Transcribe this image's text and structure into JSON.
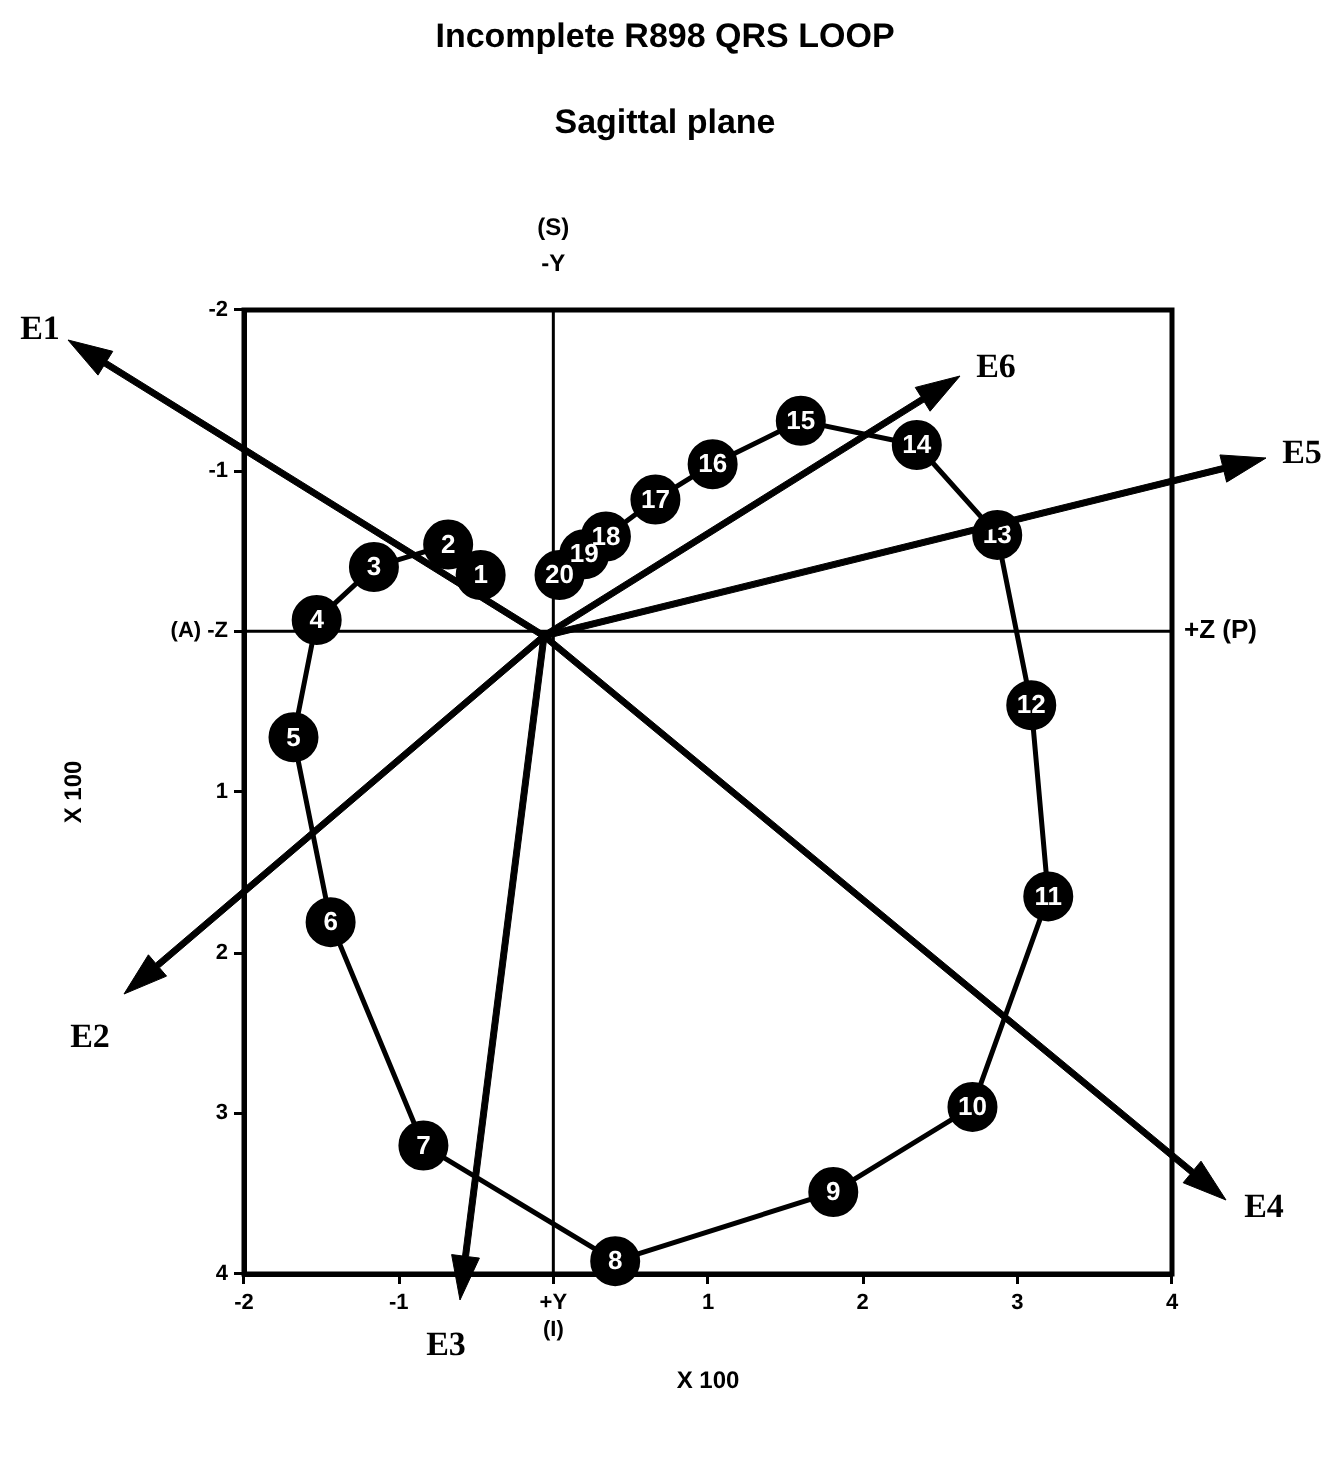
{
  "chart_data": {
    "type": "line",
    "title": "Incomplete R898 QRS LOOP",
    "subtitle": "Sagittal plane",
    "xlabel": "X 100",
    "ylabel": "X 100",
    "xlim": [
      -2,
      4
    ],
    "ylim": [
      4,
      -2
    ],
    "xticks": [
      -2,
      -1,
      {
        "value": 0,
        "label": "+Y\n(I)"
      },
      1,
      2,
      3,
      4
    ],
    "yticks": [
      -2,
      -1,
      {
        "value": 0,
        "label": "(A) -Z"
      },
      1,
      2,
      3,
      4
    ],
    "ref_lines": [
      {
        "axis": "x",
        "value": 0,
        "label": "(S)\n-Y",
        "color": "#000000"
      },
      {
        "axis": "y",
        "value": 0,
        "label": "+Z (P)",
        "color": "#000000"
      }
    ],
    "series": [
      {
        "color": "#000000",
        "marker": "circle",
        "x": [
          -0.47,
          -0.68,
          -1.16,
          -1.53,
          -1.68,
          -1.44,
          -0.84,
          0.4,
          1.81,
          2.71,
          3.2,
          3.09,
          2.87,
          2.35,
          1.6,
          1.03,
          0.66,
          0.34,
          0.2,
          0.04
        ],
        "values": [
          -0.35,
          -0.54,
          -0.4,
          -0.07,
          0.66,
          1.81,
          3.2,
          3.92,
          3.49,
          2.96,
          1.65,
          0.46,
          -0.6,
          -1.16,
          -1.31,
          -1.04,
          -0.82,
          -0.59,
          -0.48,
          -0.35
        ]
      }
    ],
    "annotations": [
      {
        "text": "1",
        "x": -0.47,
        "y": -0.35
      },
      {
        "text": "2",
        "x": -0.68,
        "y": -0.54
      },
      {
        "text": "3",
        "x": -1.16,
        "y": -0.4
      },
      {
        "text": "4",
        "x": -1.53,
        "y": -0.07
      },
      {
        "text": "5",
        "x": -1.68,
        "y": 0.66
      },
      {
        "text": "6",
        "x": -1.44,
        "y": 1.81
      },
      {
        "text": "7",
        "x": -0.84,
        "y": 3.2
      },
      {
        "text": "8",
        "x": 0.4,
        "y": 3.92
      },
      {
        "text": "9",
        "x": 1.81,
        "y": 3.49
      },
      {
        "text": "10",
        "x": 2.71,
        "y": 2.96
      },
      {
        "text": "11",
        "x": 3.2,
        "y": 1.65
      },
      {
        "text": "12",
        "x": 3.09,
        "y": 0.46
      },
      {
        "text": "13",
        "x": 2.87,
        "y": -0.6
      },
      {
        "text": "14",
        "x": 2.35,
        "y": -1.16
      },
      {
        "text": "15",
        "x": 1.6,
        "y": -1.31
      },
      {
        "text": "16",
        "x": 1.03,
        "y": -1.04
      },
      {
        "text": "17",
        "x": 0.66,
        "y": -0.82
      },
      {
        "text": "18",
        "x": 0.34,
        "y": -0.59
      },
      {
        "text": "19",
        "x": 0.2,
        "y": -0.48
      },
      {
        "text": "20",
        "x": 0.04,
        "y": -0.35
      },
      "E1",
      "E2",
      "E3",
      "E4",
      "E5",
      "E6"
    ]
  }
}
